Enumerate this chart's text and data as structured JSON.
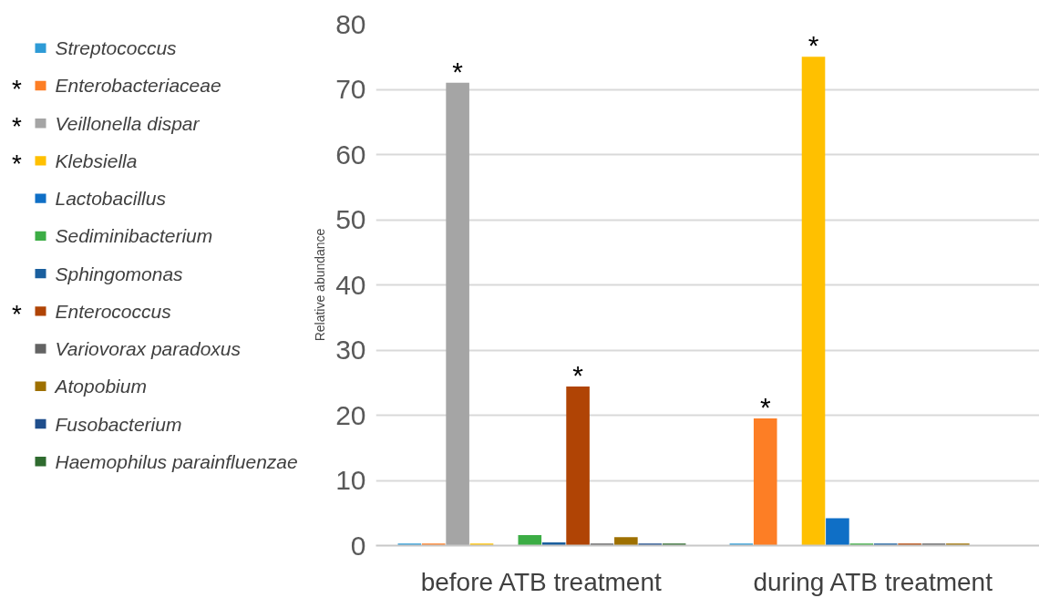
{
  "chart_data": {
    "type": "bar",
    "ylabel": "Relative abundance",
    "categories": [
      "before ATB treatment",
      "during ATB treatment"
    ],
    "series": [
      {
        "name": "Streptococcus",
        "color": "#2e9bd6",
        "values": [
          0.3,
          0.3
        ]
      },
      {
        "name": "Enterobacteriaceae",
        "color": "#fd7e25",
        "values": [
          0.3,
          19.5
        ],
        "value_labels": [
          null,
          "*"
        ]
      },
      {
        "name": "Veillonella dispar",
        "color": "#a5a5a5",
        "values": [
          71,
          0
        ],
        "value_labels": [
          "*",
          null
        ]
      },
      {
        "name": "Klebsiella",
        "color": "#ffc000",
        "values": [
          0.3,
          75
        ],
        "value_labels": [
          null,
          "*"
        ]
      },
      {
        "name": "Lactobacillus",
        "color": "#0f6fc6",
        "values": [
          0,
          4.2
        ]
      },
      {
        "name": "Sediminibacterium",
        "color": "#3cad45",
        "values": [
          1.6,
          0.3
        ]
      },
      {
        "name": "Sphingomonas",
        "color": "#1a5f9e",
        "values": [
          0.5,
          0.3
        ]
      },
      {
        "name": "Enterococcus",
        "color": "#b04405",
        "values": [
          24.4,
          0.3
        ],
        "value_labels": [
          "*",
          null
        ]
      },
      {
        "name": "Variovorax paradoxus",
        "color": "#636363",
        "values": [
          0.3,
          0.3
        ]
      },
      {
        "name": "Atopobium",
        "color": "#9e7000",
        "values": [
          1.3,
          0.3
        ]
      },
      {
        "name": "Fusobacterium",
        "color": "#1f4e8c",
        "values": [
          0.3,
          0
        ]
      },
      {
        "name": "Haemophilus parainfluenzae",
        "color": "#2f6b2f",
        "values": [
          0.3,
          0
        ]
      }
    ],
    "ylim": [
      0,
      80
    ],
    "yticks": [
      0,
      10,
      20,
      30,
      40,
      50,
      60,
      70,
      80
    ],
    "grid": "y",
    "legend": "left"
  }
}
